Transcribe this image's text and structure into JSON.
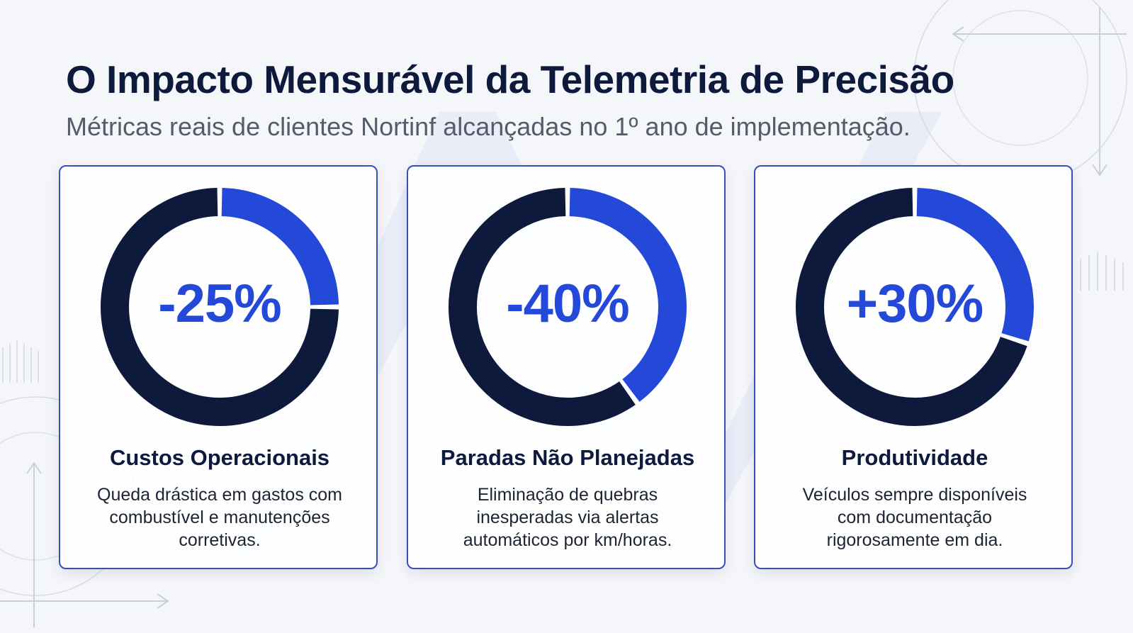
{
  "title": "O Impacto Mensurável da Telemetria de Precisão",
  "subtitle": "Métricas reais de clientes Nortinf alcançadas no 1º ano de implementação.",
  "colors": {
    "accent": "#2448d8",
    "dark": "#0d1a3c",
    "border": "#3550b8"
  },
  "cards": [
    {
      "stat": "-25%",
      "fraction": 0.25,
      "label": "Custos Operacionais",
      "description": "Queda drástica em gastos com combustível e manutenções corretivas."
    },
    {
      "stat": "-40%",
      "fraction": 0.4,
      "label": "Paradas Não Planejadas",
      "description": "Eliminação de quebras inesperadas via alertas automáticos por km/horas."
    },
    {
      "stat": "+30%",
      "fraction": 0.3,
      "label": "Produtividade",
      "description": "Veículos sempre disponíveis com documentação rigorosamente em dia."
    }
  ]
}
